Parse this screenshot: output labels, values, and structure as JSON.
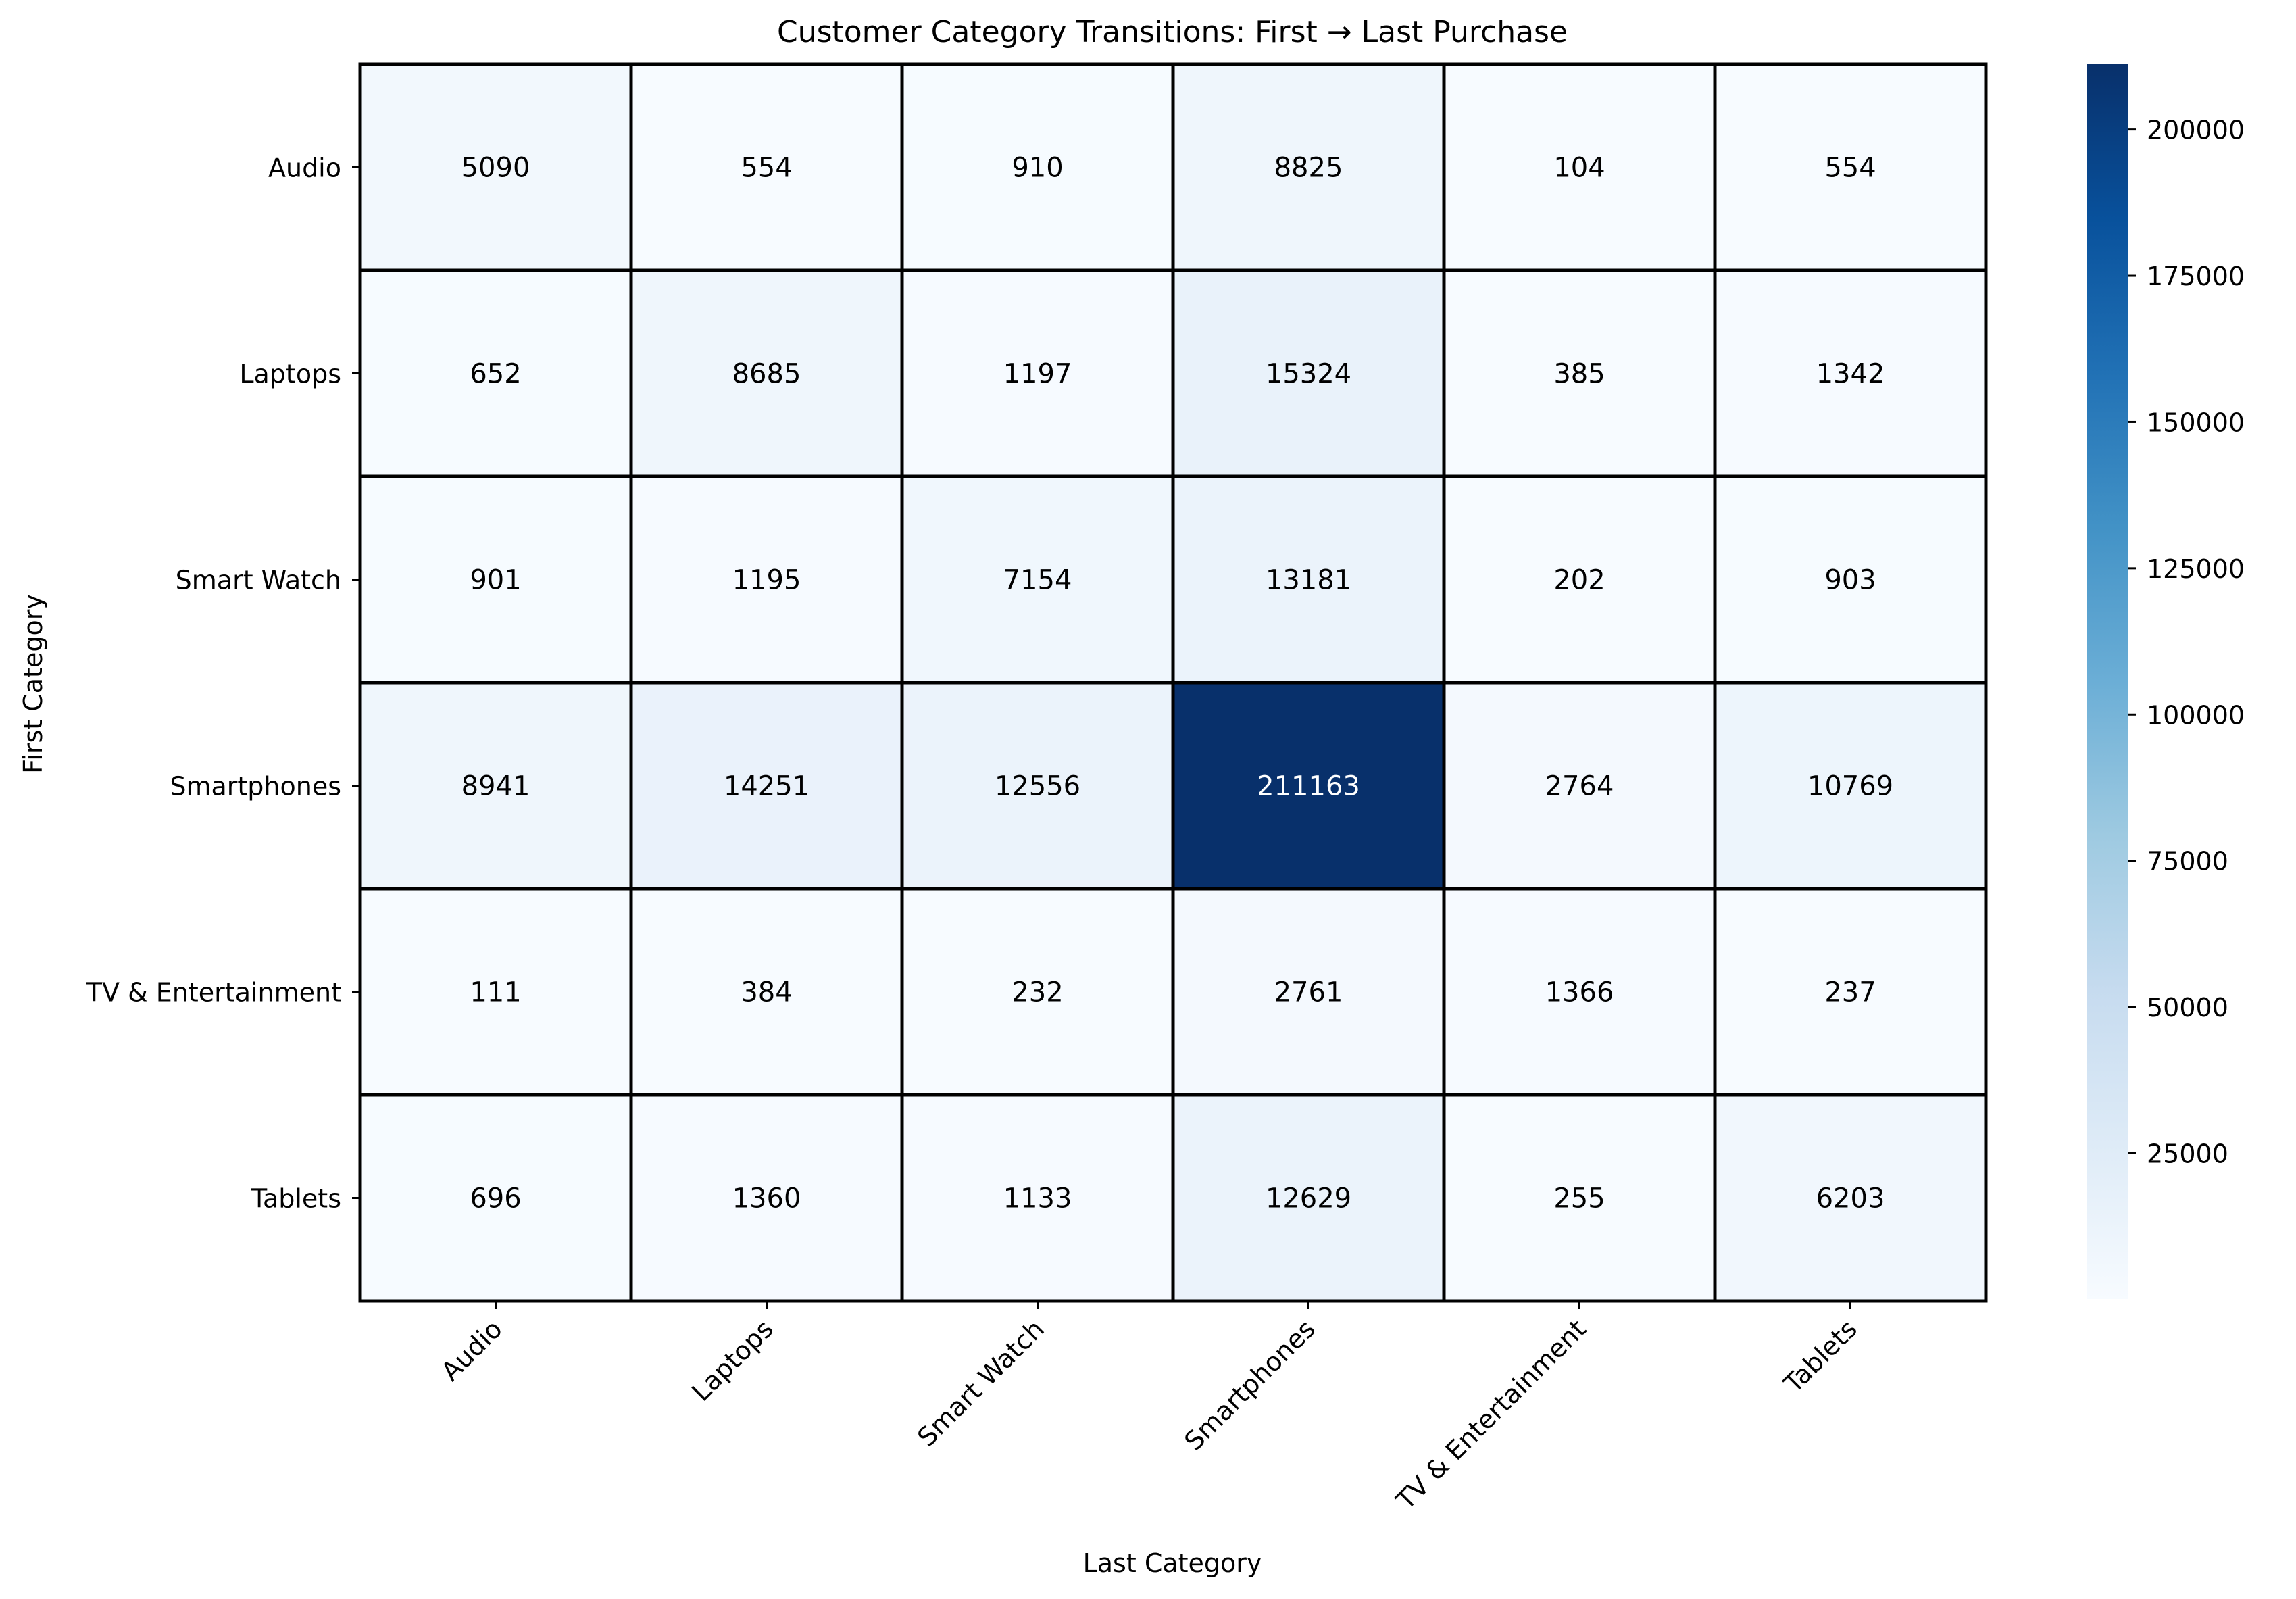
{
  "chart_data": {
    "type": "heatmap",
    "title": "Customer Category Transitions: First → Last Purchase",
    "xlabel": "Last Category",
    "ylabel": "First Category",
    "x_categories": [
      "Audio",
      "Laptops",
      "Smart Watch",
      "Smartphones",
      "TV & Entertainment",
      "Tablets"
    ],
    "y_categories": [
      "Audio",
      "Laptops",
      "Smart Watch",
      "Smartphones",
      "TV & Entertainment",
      "Tablets"
    ],
    "values": [
      [
        5090,
        554,
        910,
        8825,
        104,
        554
      ],
      [
        652,
        8685,
        1197,
        15324,
        385,
        1342
      ],
      [
        901,
        1195,
        7154,
        13181,
        202,
        903
      ],
      [
        8941,
        14251,
        12556,
        211163,
        2764,
        10769
      ],
      [
        111,
        384,
        232,
        2761,
        1366,
        237
      ],
      [
        696,
        1360,
        1133,
        12629,
        255,
        6203
      ]
    ],
    "colormap": "Blues",
    "colorbar": {
      "min": 104,
      "max": 211163,
      "ticks": [
        25000,
        50000,
        75000,
        100000,
        125000,
        150000,
        175000,
        200000
      ]
    },
    "cell_border_color": "#000000",
    "grid": false
  }
}
